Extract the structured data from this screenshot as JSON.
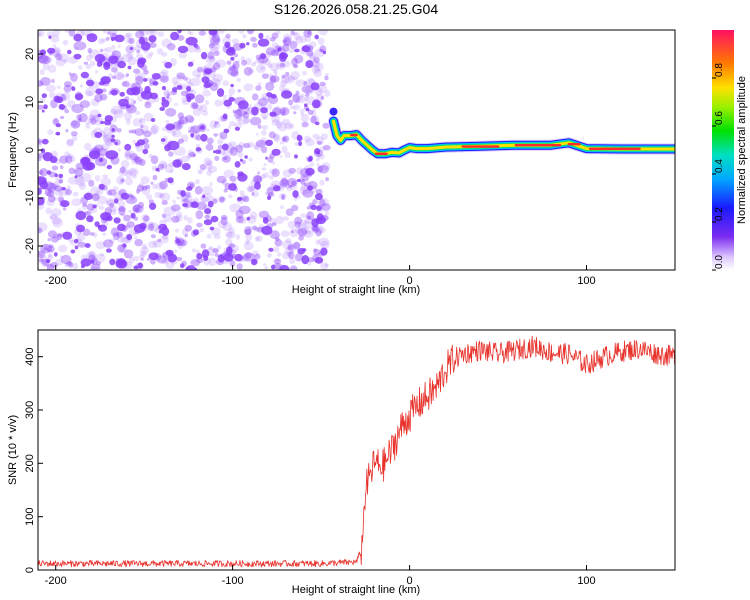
{
  "figure_title": "S126.2026.058.21.25.G04",
  "colors": {
    "snr_line": "#e8322c",
    "axis": "#000000",
    "background": "#ffffff",
    "noise": "#8a3ffc"
  },
  "chart_data": [
    {
      "type": "heatmap",
      "title": "S126.2026.058.21.25.G04",
      "xlabel": "Height of straight line (km)",
      "ylabel": "Frequency (Hz)",
      "xlim": [
        -210,
        150
      ],
      "ylim": [
        -25,
        25
      ],
      "xticks": [
        -200,
        -100,
        0,
        100
      ],
      "xtick_labels": [
        "-200",
        "-100",
        "0",
        "100"
      ],
      "yticks": [
        -20,
        -10,
        0,
        10,
        20
      ],
      "ytick_labels": [
        "-20",
        "-10",
        "0",
        "10",
        "20"
      ],
      "noise_region_x": [
        -210,
        -43
      ],
      "signal_track": [
        {
          "x": -43,
          "y": 6
        },
        {
          "x": -41,
          "y": 3
        },
        {
          "x": -39,
          "y": 2
        },
        {
          "x": -37,
          "y": 3
        },
        {
          "x": -33,
          "y": 3
        },
        {
          "x": -30,
          "y": 3.2
        },
        {
          "x": -27,
          "y": 2
        },
        {
          "x": -24,
          "y": 1
        },
        {
          "x": -21,
          "y": 0
        },
        {
          "x": -18,
          "y": -0.8
        },
        {
          "x": -14,
          "y": -0.8
        },
        {
          "x": -10,
          "y": -0.5
        },
        {
          "x": -6,
          "y": -0.6
        },
        {
          "x": -3,
          "y": 0
        },
        {
          "x": 0,
          "y": 0.5
        },
        {
          "x": 4,
          "y": 0.3
        },
        {
          "x": 10,
          "y": 0.3
        },
        {
          "x": 20,
          "y": 0.6
        },
        {
          "x": 40,
          "y": 0.8
        },
        {
          "x": 60,
          "y": 1
        },
        {
          "x": 80,
          "y": 1
        },
        {
          "x": 90,
          "y": 1.5
        },
        {
          "x": 100,
          "y": 0.3
        },
        {
          "x": 120,
          "y": 0.2
        },
        {
          "x": 150,
          "y": 0.2
        }
      ],
      "colorbar": {
        "label": "Normalized spectral amplitude",
        "range": [
          0,
          1
        ],
        "ticks": [
          0,
          0.2,
          0.4,
          0.6,
          0.8
        ],
        "tick_labels": [
          "0.0",
          "0.2",
          "0.4",
          "0.6",
          "0.8"
        ]
      }
    },
    {
      "type": "line",
      "xlabel": "Height of straight line (km)",
      "ylabel": "SNR (10 * v/v)",
      "xlim": [
        -210,
        150
      ],
      "ylim": [
        0,
        450
      ],
      "xticks": [
        -200,
        -100,
        0,
        100
      ],
      "xtick_labels": [
        "-200",
        "-100",
        "0",
        "100"
      ],
      "yticks": [
        0,
        100,
        200,
        300,
        400
      ],
      "ytick_labels": [
        "0",
        "100",
        "200",
        "300",
        "400"
      ],
      "series": [
        {
          "name": "SNR",
          "points": [
            {
              "x": -210,
              "y": 12
            },
            {
              "x": -150,
              "y": 12
            },
            {
              "x": -100,
              "y": 12
            },
            {
              "x": -50,
              "y": 12
            },
            {
              "x": -30,
              "y": 15
            },
            {
              "x": -27,
              "y": 40
            },
            {
              "x": -25,
              "y": 150
            },
            {
              "x": -20,
              "y": 200
            },
            {
              "x": -15,
              "y": 195
            },
            {
              "x": -10,
              "y": 225
            },
            {
              "x": -5,
              "y": 265
            },
            {
              "x": 0,
              "y": 290
            },
            {
              "x": 5,
              "y": 310
            },
            {
              "x": 10,
              "y": 325
            },
            {
              "x": 15,
              "y": 340
            },
            {
              "x": 20,
              "y": 375
            },
            {
              "x": 25,
              "y": 395
            },
            {
              "x": 30,
              "y": 405
            },
            {
              "x": 40,
              "y": 412
            },
            {
              "x": 50,
              "y": 405
            },
            {
              "x": 60,
              "y": 412
            },
            {
              "x": 70,
              "y": 420
            },
            {
              "x": 80,
              "y": 408
            },
            {
              "x": 90,
              "y": 405
            },
            {
              "x": 100,
              "y": 385
            },
            {
              "x": 110,
              "y": 400
            },
            {
              "x": 120,
              "y": 410
            },
            {
              "x": 130,
              "y": 415
            },
            {
              "x": 140,
              "y": 405
            },
            {
              "x": 150,
              "y": 400
            }
          ],
          "noise_amplitude": {
            "baseline": 6,
            "rise": 32,
            "plateau": 20
          }
        }
      ]
    }
  ]
}
